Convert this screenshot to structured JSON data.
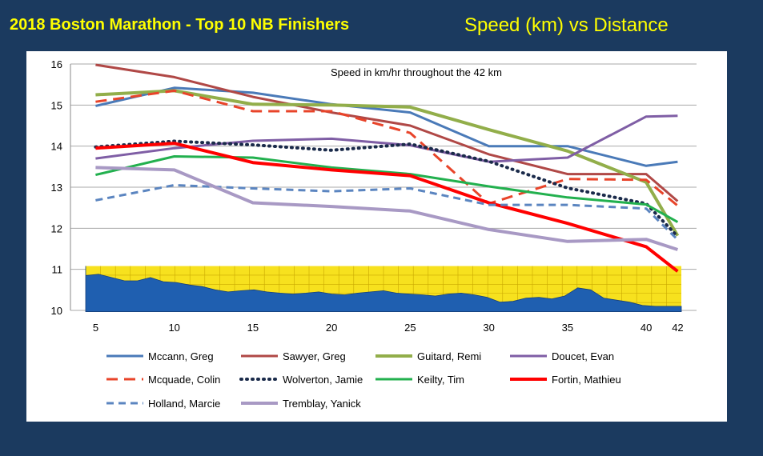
{
  "header": {
    "title_left": "2018 Boston Marathon - Top 10 NB Finishers",
    "title_right": "Speed (km) vs Distance"
  },
  "chart_data": {
    "type": "line",
    "annotation": "Speed  in km/hr  throughout the 42 km",
    "x": [
      5,
      10,
      15,
      20,
      25,
      30,
      35,
      40,
      42
    ],
    "xlim": [
      3.4,
      43.2
    ],
    "ylim": [
      10,
      16
    ],
    "y_ticks": [
      10,
      11,
      12,
      13,
      14,
      15,
      16
    ],
    "grid": true,
    "legend_position": "bottom",
    "series": [
      {
        "name": "Mccann, Greg",
        "color": "#4a7ab8",
        "dash": "solid",
        "width": 3,
        "values": [
          14.98,
          15.42,
          15.3,
          15.02,
          14.82,
          14.0,
          14.0,
          13.52,
          13.62
        ]
      },
      {
        "name": "Sawyer, Greg",
        "color": "#b04846",
        "dash": "solid",
        "width": 3,
        "values": [
          15.98,
          15.68,
          15.2,
          14.82,
          14.5,
          13.8,
          13.32,
          13.32,
          12.66
        ]
      },
      {
        "name": "Guitard, Remi",
        "color": "#92ae4a",
        "dash": "solid",
        "width": 4,
        "values": [
          15.25,
          15.35,
          15.02,
          15.0,
          14.95,
          14.4,
          13.88,
          13.12,
          11.82
        ]
      },
      {
        "name": "Doucet, Evan",
        "color": "#7f5ea5",
        "dash": "solid",
        "width": 3,
        "values": [
          13.7,
          13.95,
          14.13,
          14.18,
          14.02,
          13.62,
          13.72,
          14.72,
          14.74
        ]
      },
      {
        "name": "Mcquade, Colin",
        "color": "#e8442a",
        "dash": "long",
        "width": 3,
        "values": [
          15.08,
          15.35,
          14.85,
          14.85,
          14.32,
          12.6,
          13.2,
          13.18,
          12.55
        ]
      },
      {
        "name": "Wolverton, Jamie",
        "color": "#1a2a4a",
        "dash": "dot",
        "width": 4,
        "values": [
          13.98,
          14.12,
          14.03,
          13.9,
          14.05,
          13.63,
          12.98,
          12.6,
          11.8
        ]
      },
      {
        "name": "Keilty, Tim",
        "color": "#22b04e",
        "dash": "solid",
        "width": 3,
        "values": [
          13.3,
          13.75,
          13.72,
          13.48,
          13.32,
          13.02,
          12.75,
          12.58,
          12.15
        ]
      },
      {
        "name": "Fortin, Mathieu",
        "color": "#ff0000",
        "dash": "solid",
        "width": 4,
        "values": [
          13.95,
          14.07,
          13.6,
          13.42,
          13.28,
          12.62,
          12.12,
          11.55,
          10.95
        ]
      },
      {
        "name": "Holland, Marcie",
        "color": "#5b85c0",
        "dash": "dash",
        "width": 3,
        "values": [
          12.68,
          13.05,
          12.97,
          12.9,
          12.97,
          12.57,
          12.57,
          12.48,
          11.72
        ]
      },
      {
        "name": "Tremblay, Yanick",
        "color": "#a899c4",
        "dash": "solid",
        "width": 4,
        "values": [
          13.48,
          13.42,
          12.62,
          12.53,
          12.42,
          11.97,
          11.68,
          11.73,
          11.48
        ]
      }
    ],
    "elevation_profile": [
      10.85,
      10.88,
      10.8,
      10.72,
      10.72,
      10.8,
      10.7,
      10.68,
      10.62,
      10.58,
      10.5,
      10.45,
      10.48,
      10.5,
      10.45,
      10.42,
      10.4,
      10.42,
      10.45,
      10.4,
      10.38,
      10.42,
      10.45,
      10.48,
      10.42,
      10.4,
      10.38,
      10.35,
      10.4,
      10.42,
      10.38,
      10.32,
      10.2,
      10.22,
      10.3,
      10.32,
      10.28,
      10.35,
      10.55,
      10.5,
      10.3,
      10.25,
      10.2,
      10.12,
      10.1,
      10.1,
      10.1
    ]
  }
}
